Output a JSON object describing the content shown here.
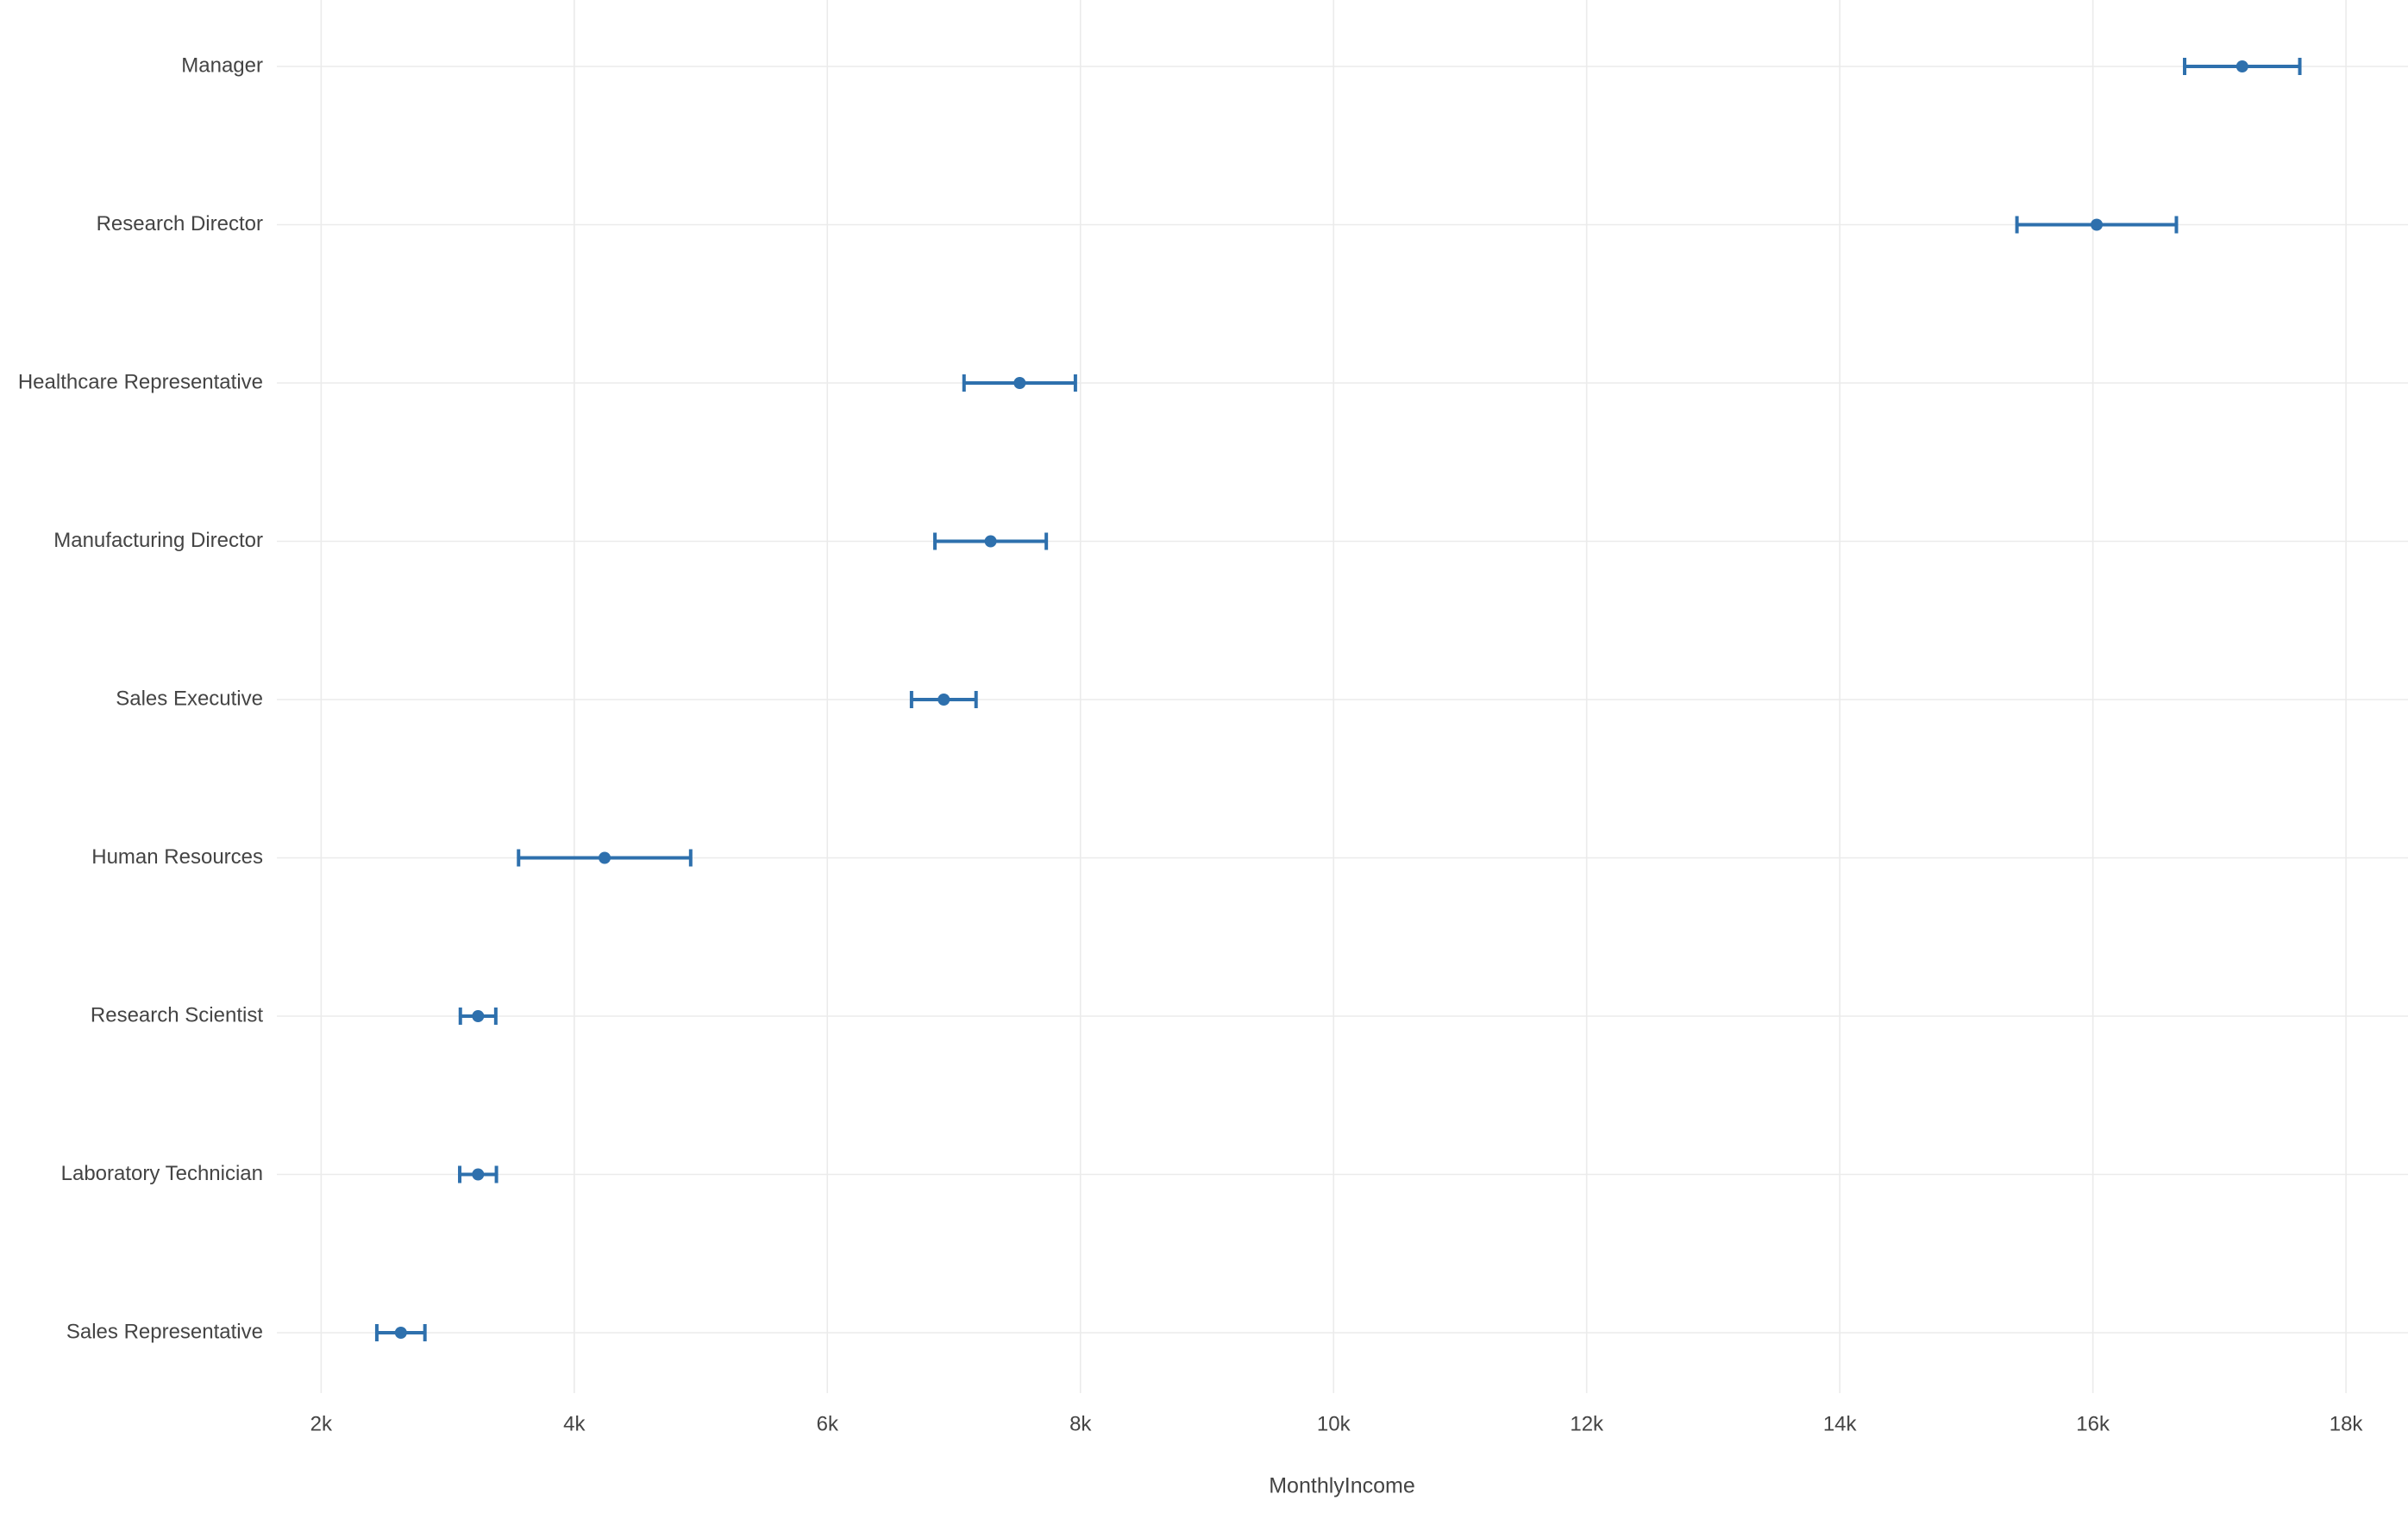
{
  "chart_data": {
    "type": "errorbar",
    "x_label": "MonthlyIncome",
    "categories": [
      "Manager",
      "Research Director",
      "Healthcare Representative",
      "Manufacturing Director",
      "Sales Executive",
      "Human Resources",
      "Research Scientist",
      "Laboratory Technician",
      "Sales Representative"
    ],
    "values": [
      17180,
      16030,
      7520,
      7290,
      6920,
      4240,
      3240,
      3240,
      2630
    ],
    "errors": [
      455,
      630,
      440,
      440,
      255,
      680,
      140,
      145,
      190
    ],
    "color": "#2e70ad",
    "xlim": [
      1650,
      18490
    ],
    "xticks": [
      {
        "value": 2000,
        "label": "2k"
      },
      {
        "value": 4000,
        "label": "4k"
      },
      {
        "value": 6000,
        "label": "6k"
      },
      {
        "value": 8000,
        "label": "8k"
      },
      {
        "value": 10000,
        "label": "10k"
      },
      {
        "value": 12000,
        "label": "12k"
      },
      {
        "value": 14000,
        "label": "14k"
      },
      {
        "value": 16000,
        "label": "16k"
      },
      {
        "value": 18000,
        "label": "18k"
      }
    ],
    "grid": true
  }
}
